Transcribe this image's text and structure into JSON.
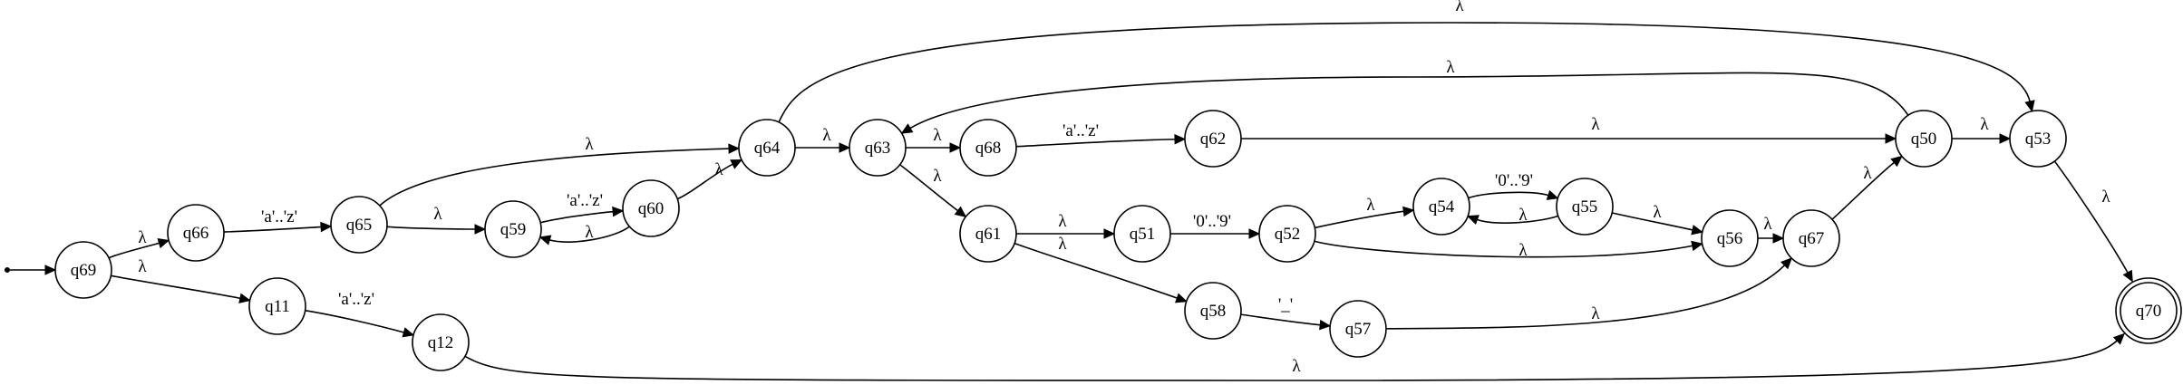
{
  "diagram": {
    "type": "finite-state-automaton",
    "start_state": "q69",
    "accept_states": [
      "q70"
    ],
    "states": [
      "q69",
      "q66",
      "q11",
      "q65",
      "q12",
      "q59",
      "q60",
      "q64",
      "q63",
      "q68",
      "q61",
      "q62",
      "q51",
      "q58",
      "q52",
      "q57",
      "q54",
      "q55",
      "q56",
      "q67",
      "q50",
      "q53",
      "q70"
    ],
    "transitions": [
      {
        "from": "q69",
        "to": "q66",
        "label": "λ"
      },
      {
        "from": "q69",
        "to": "q11",
        "label": "λ"
      },
      {
        "from": "q66",
        "to": "q65",
        "label": "'a'..'z'"
      },
      {
        "from": "q11",
        "to": "q12",
        "label": "'a'..'z'"
      },
      {
        "from": "q65",
        "to": "q59",
        "label": "λ"
      },
      {
        "from": "q65",
        "to": "q64",
        "label": "λ"
      },
      {
        "from": "q59",
        "to": "q60",
        "label": "'a'..'z'"
      },
      {
        "from": "q60",
        "to": "q59",
        "label": "λ"
      },
      {
        "from": "q60",
        "to": "q64",
        "label": "λ"
      },
      {
        "from": "q64",
        "to": "q63",
        "label": "λ"
      },
      {
        "from": "q64",
        "to": "q53",
        "label": "λ"
      },
      {
        "from": "q63",
        "to": "q68",
        "label": "λ"
      },
      {
        "from": "q63",
        "to": "q61",
        "label": "λ"
      },
      {
        "from": "q68",
        "to": "q62",
        "label": "'a'..'z'"
      },
      {
        "from": "q62",
        "to": "q50",
        "label": "λ"
      },
      {
        "from": "q61",
        "to": "q51",
        "label": "λ"
      },
      {
        "from": "q61",
        "to": "q58",
        "label": "λ"
      },
      {
        "from": "q51",
        "to": "q52",
        "label": "'0'..'9'"
      },
      {
        "from": "q58",
        "to": "q57",
        "label": "'_'"
      },
      {
        "from": "q52",
        "to": "q54",
        "label": "λ"
      },
      {
        "from": "q52",
        "to": "q56",
        "label": "λ"
      },
      {
        "from": "q54",
        "to": "q55",
        "label": "'0'..'9'"
      },
      {
        "from": "q55",
        "to": "q54",
        "label": "λ"
      },
      {
        "from": "q55",
        "to": "q56",
        "label": "λ"
      },
      {
        "from": "q56",
        "to": "q67",
        "label": "λ"
      },
      {
        "from": "q57",
        "to": "q67",
        "label": "λ"
      },
      {
        "from": "q67",
        "to": "q50",
        "label": "λ"
      },
      {
        "from": "q50",
        "to": "q63",
        "label": "λ"
      },
      {
        "from": "q50",
        "to": "q53",
        "label": "λ"
      },
      {
        "from": "q53",
        "to": "q70",
        "label": "λ"
      },
      {
        "from": "q12",
        "to": "q70",
        "label": "λ"
      }
    ]
  }
}
